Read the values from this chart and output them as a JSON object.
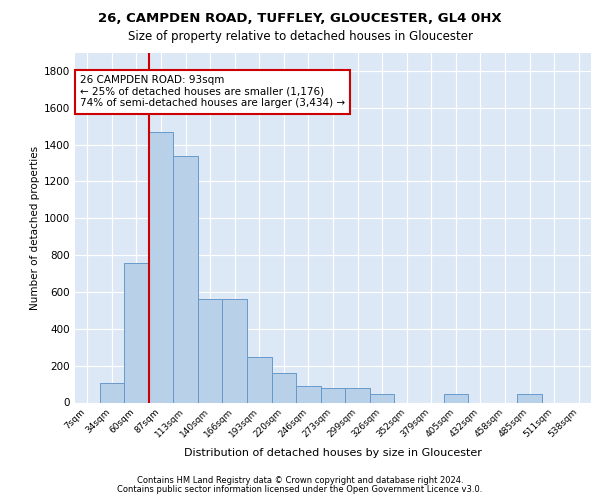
{
  "title1": "26, CAMPDEN ROAD, TUFFLEY, GLOUCESTER, GL4 0HX",
  "title2": "Size of property relative to detached houses in Gloucester",
  "xlabel": "Distribution of detached houses by size in Gloucester",
  "ylabel": "Number of detached properties",
  "categories": [
    "7sqm",
    "34sqm",
    "60sqm",
    "87sqm",
    "113sqm",
    "140sqm",
    "166sqm",
    "193sqm",
    "220sqm",
    "246sqm",
    "273sqm",
    "299sqm",
    "326sqm",
    "352sqm",
    "379sqm",
    "405sqm",
    "432sqm",
    "458sqm",
    "485sqm",
    "511sqm",
    "538sqm"
  ],
  "values": [
    0,
    105,
    760,
    1470,
    1340,
    560,
    560,
    245,
    160,
    90,
    80,
    80,
    45,
    0,
    0,
    45,
    0,
    0,
    45,
    0,
    0
  ],
  "bar_color": "#b8d0e8",
  "bar_edge_color": "#6699cc",
  "ylim": [
    0,
    1900
  ],
  "yticks": [
    0,
    200,
    400,
    600,
    800,
    1000,
    1200,
    1400,
    1600,
    1800
  ],
  "property_line_bin": 3,
  "annotation_text": "26 CAMPDEN ROAD: 93sqm\n← 25% of detached houses are smaller (1,176)\n74% of semi-detached houses are larger (3,434) →",
  "annotation_box_facecolor": "#ffffff",
  "annotation_box_edgecolor": "#cc0000",
  "vline_color": "#cc0000",
  "footer1": "Contains HM Land Registry data © Crown copyright and database right 2024.",
  "footer2": "Contains public sector information licensed under the Open Government Licence v3.0.",
  "plot_bg_color": "#dce8f5"
}
